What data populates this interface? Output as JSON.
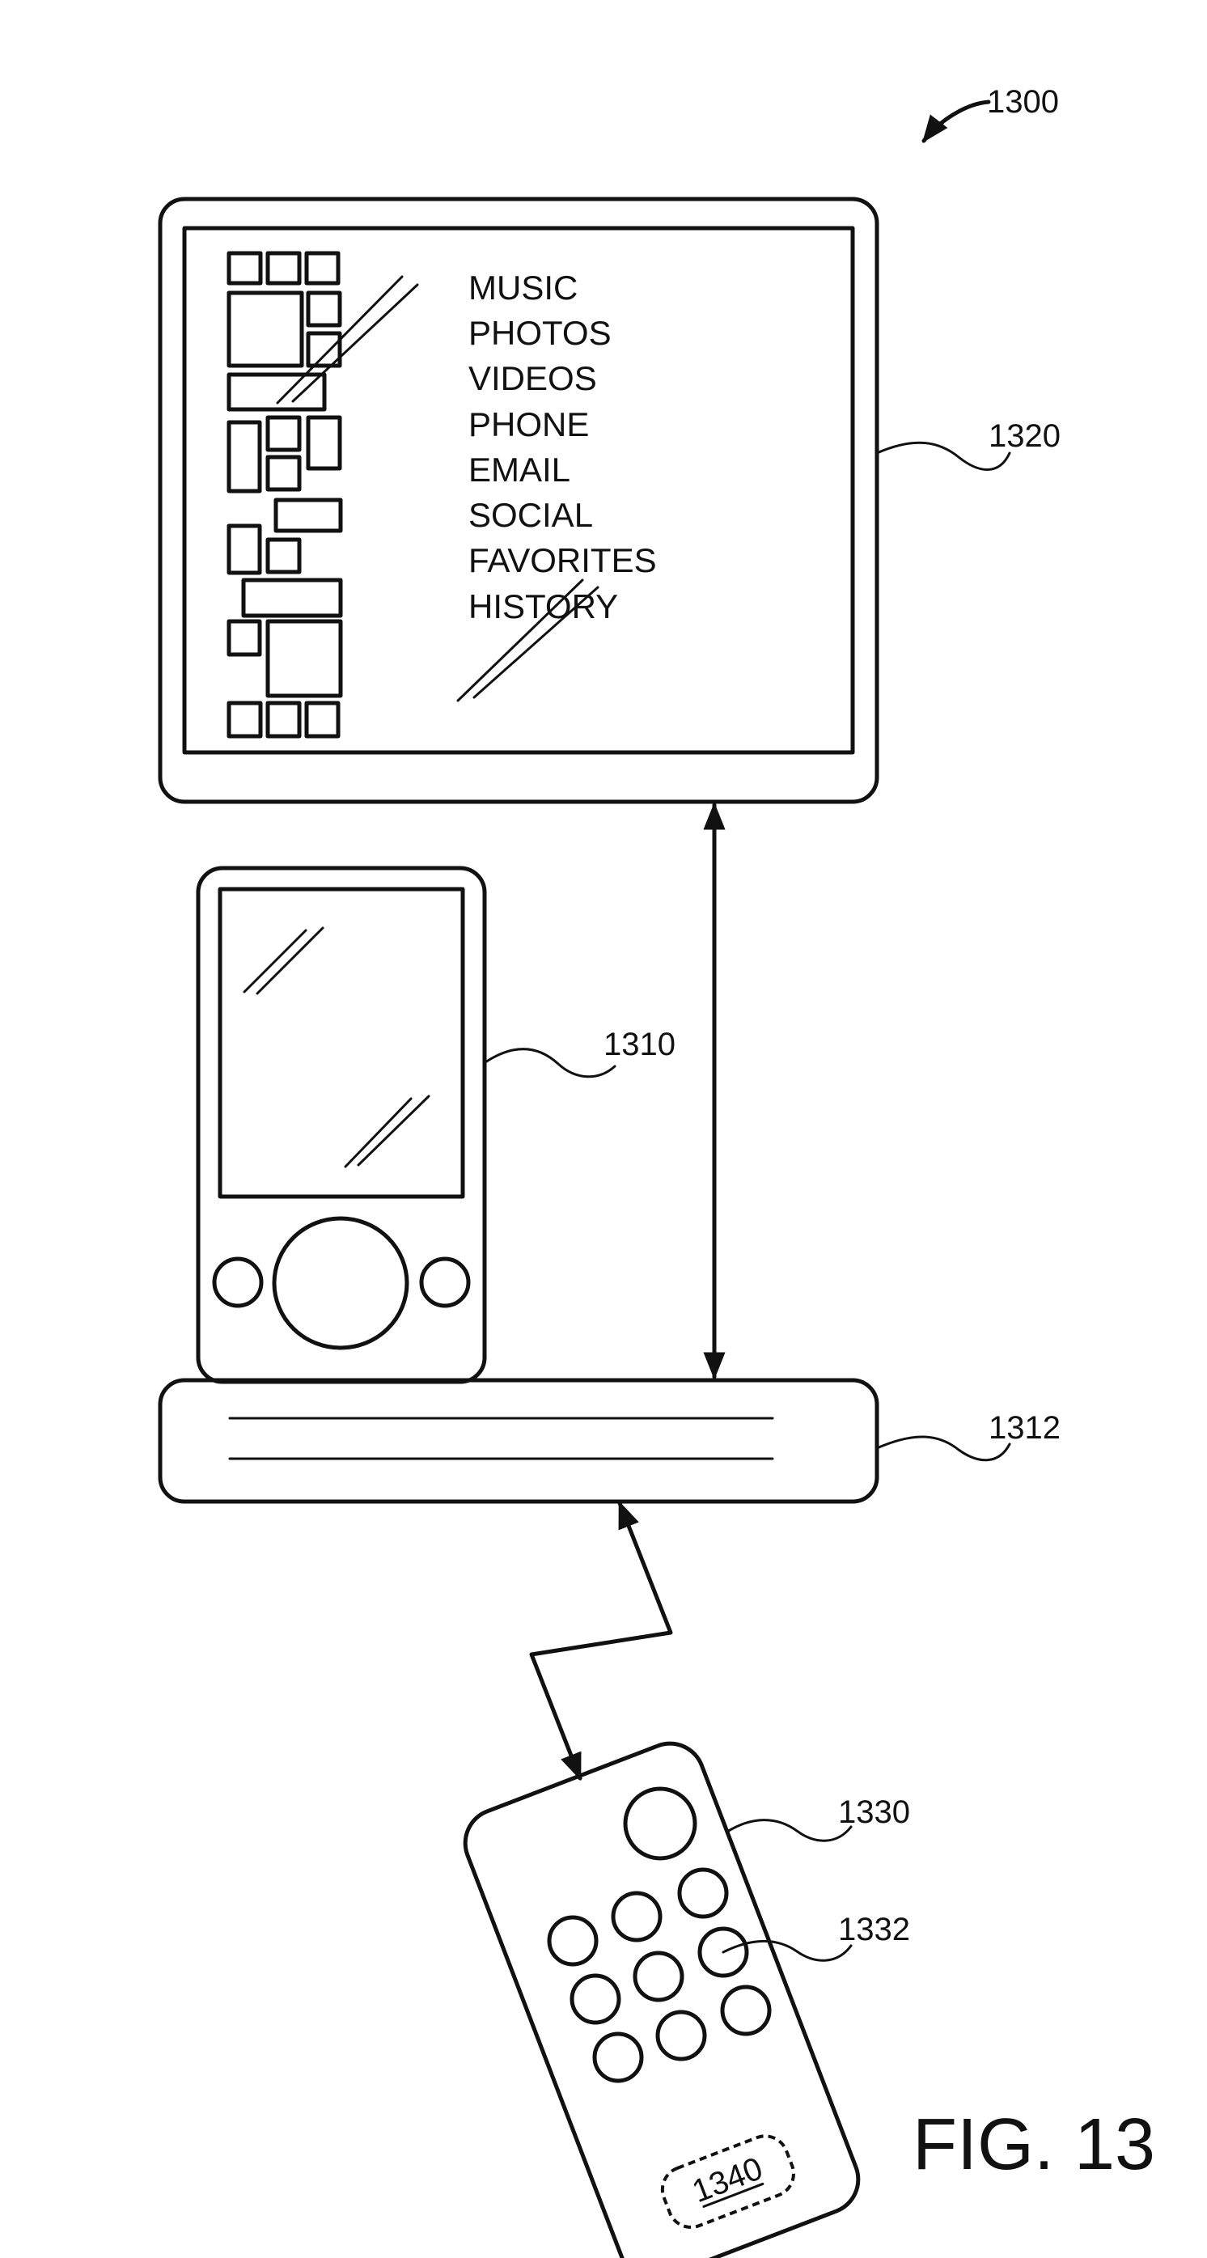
{
  "refs": {
    "system": "1300",
    "display": "1320",
    "device": "1310",
    "dock": "1312",
    "remote": "1330",
    "remote_button": "1332",
    "remote_label": "1340"
  },
  "menu_items": [
    "MUSIC",
    "PHOTOS",
    "VIDEOS",
    "PHONE",
    "EMAIL",
    "SOCIAL",
    "FAVORITES",
    "HISTORY"
  ],
  "figure_label": "FIG. 13"
}
